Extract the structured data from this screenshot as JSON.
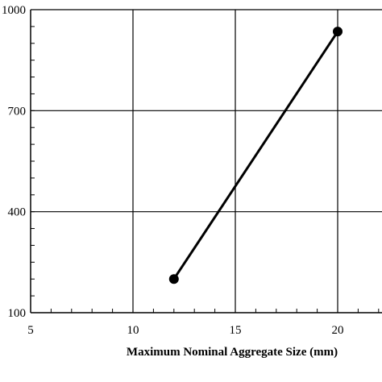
{
  "chart_data": {
    "type": "line",
    "title": "",
    "xlabel": "Maximum  Nominal Aggregate Size (mm)",
    "ylabel": "",
    "xlim": [
      5,
      25
    ],
    "ylim": [
      100,
      1000
    ],
    "x_ticks": [
      5,
      10,
      15,
      20
    ],
    "x_tick_labels": [
      "5",
      "10",
      "15",
      "20"
    ],
    "y_ticks": [
      100,
      400,
      700,
      1000
    ],
    "y_tick_labels": [
      "100",
      "400",
      "700",
      "1000"
    ],
    "grid": true,
    "series": [
      {
        "name": "",
        "x": [
          12,
          20
        ],
        "y": [
          200,
          935
        ],
        "color": "#000000",
        "marker": "circle"
      }
    ]
  }
}
